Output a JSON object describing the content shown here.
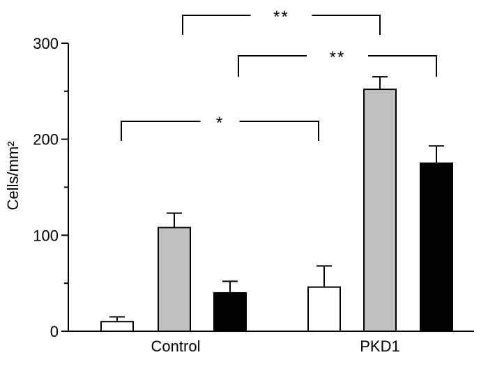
{
  "chart_data": {
    "type": "bar",
    "ylabel": "Cells/mm²",
    "ylim": [
      0,
      300
    ],
    "yticks": [
      0,
      100,
      200,
      300
    ],
    "categories": [
      "Control",
      "PKD1"
    ],
    "series": [
      {
        "color": "#ffffff",
        "values": [
          10,
          46
        ],
        "errors": [
          5,
          22
        ]
      },
      {
        "color": "#bfbfbf",
        "values": [
          108,
          252
        ],
        "errors": [
          15,
          13
        ]
      },
      {
        "color": "#000000",
        "values": [
          40,
          175
        ],
        "errors": [
          12,
          18
        ]
      }
    ],
    "significance": [
      {
        "label": "**",
        "from": {
          "group": 0,
          "series": 1
        },
        "to": {
          "group": 1,
          "series": 1
        },
        "level": 0
      },
      {
        "label": "**",
        "from": {
          "group": 0,
          "series": 2
        },
        "to": {
          "group": 1,
          "series": 2
        },
        "level": 1
      },
      {
        "label": "*",
        "from": {
          "group": 0,
          "series": 0
        },
        "to": {
          "group": 1,
          "series": 0
        },
        "level": 2
      }
    ],
    "grid": false,
    "legend": "none"
  }
}
